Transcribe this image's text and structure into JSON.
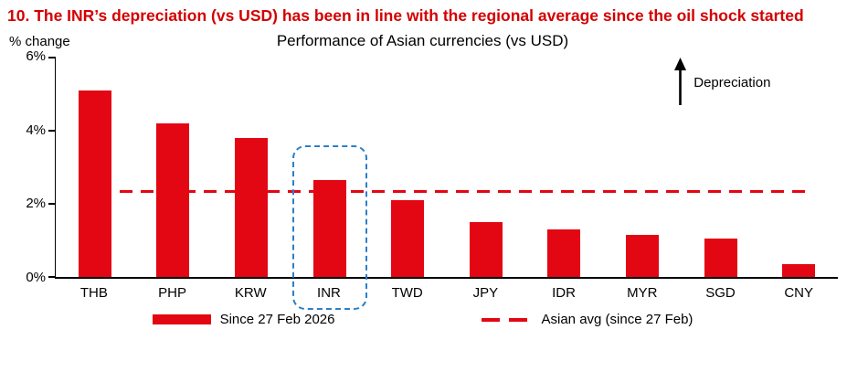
{
  "heading": "10. The INR’s depreciation (vs USD) has been in line with the regional average since the oil shock started",
  "chart_data": {
    "type": "bar",
    "title": "Performance of Asian currencies (vs USD)",
    "ylabel": "% change",
    "xlabel": "",
    "categories": [
      "THB",
      "PHP",
      "KRW",
      "INR",
      "TWD",
      "JPY",
      "IDR",
      "MYR",
      "SGD",
      "CNY"
    ],
    "values": [
      5.1,
      4.2,
      3.8,
      2.65,
      2.1,
      1.5,
      1.3,
      1.15,
      1.05,
      0.35
    ],
    "ylim": [
      0,
      6
    ],
    "yticks": [
      "0%",
      "2%",
      "4%",
      "6%"
    ],
    "ytick_values": [
      0,
      2,
      4,
      6
    ],
    "grid": false,
    "avg_line_value": 2.3,
    "highlight_category": "INR",
    "highlight_top": 3.6,
    "bar_color": "#e30613",
    "avg_line_color": "#e30613",
    "highlight_color": "#2a7fc9",
    "annotation": "Depreciation",
    "legend_position": "bottom",
    "legend": [
      {
        "label": "Since 27 Feb 2026",
        "type": "bar"
      },
      {
        "label": "Asian avg (since 27 Feb)",
        "type": "dashed-line"
      }
    ]
  }
}
